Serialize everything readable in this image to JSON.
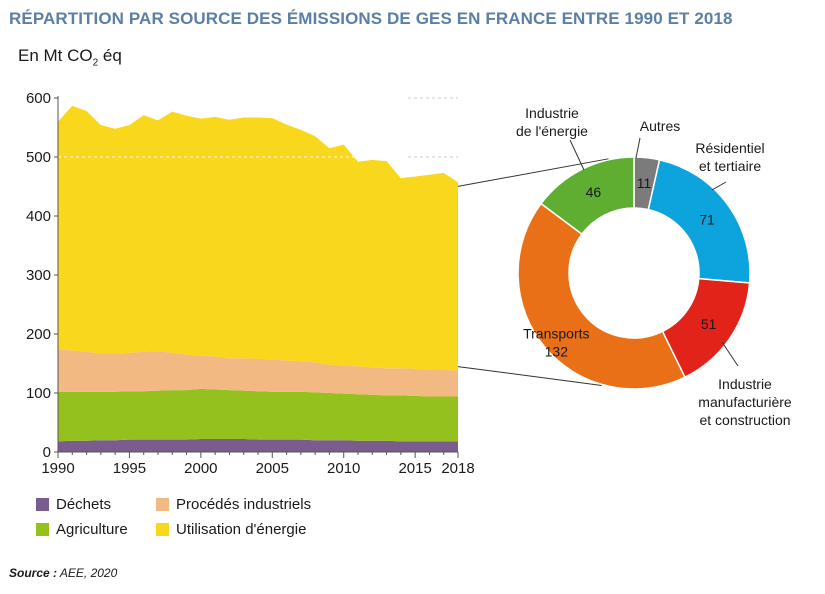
{
  "title": "RÉPARTITION PAR SOURCE DES ÉMISSIONS DE GES EN FRANCE ENTRE 1990 ET 2018",
  "unit": {
    "prefix": "En Mt CO",
    "sub": "2",
    "suffix": " éq"
  },
  "source": {
    "label": "Source :",
    "text": " AEE, 2020"
  },
  "legend": [
    {
      "label": "Déchets",
      "color": "#7a5c8f"
    },
    {
      "label": "Procédés industriels",
      "color": "#f2b983"
    },
    {
      "label": "Agriculture",
      "color": "#95c11f"
    },
    {
      "label": "Utilisation d'énergie",
      "color": "#f9d71c"
    }
  ],
  "chart_data": [
    {
      "type": "area",
      "stacked": true,
      "unit": "En Mt CO2 éq",
      "x": [
        1990,
        1991,
        1992,
        1993,
        1994,
        1995,
        1996,
        1997,
        1998,
        1999,
        2000,
        2001,
        2002,
        2003,
        2004,
        2005,
        2006,
        2007,
        2008,
        2009,
        2010,
        2011,
        2012,
        2013,
        2014,
        2015,
        2016,
        2017,
        2018
      ],
      "series": [
        {
          "name": "Déchets",
          "color": "#7a5c8f",
          "values": [
            18,
            19,
            19,
            20,
            20,
            21,
            21,
            21,
            21,
            21,
            22,
            22,
            22,
            22,
            21,
            21,
            21,
            21,
            20,
            20,
            20,
            19,
            19,
            19,
            18,
            18,
            18,
            18,
            18
          ]
        },
        {
          "name": "Agriculture",
          "color": "#95c11f",
          "values": [
            84,
            83,
            83,
            82,
            82,
            82,
            82,
            83,
            84,
            84,
            85,
            84,
            83,
            82,
            82,
            81,
            81,
            81,
            81,
            80,
            79,
            79,
            78,
            77,
            78,
            77,
            76,
            76,
            76
          ]
        },
        {
          "name": "Procédés industriels",
          "color": "#f2b983",
          "values": [
            72,
            70,
            68,
            65,
            65,
            65,
            67,
            67,
            63,
            60,
            56,
            56,
            54,
            55,
            55,
            55,
            53,
            52,
            51,
            48,
            48,
            47,
            46,
            46,
            46,
            46,
            45,
            45,
            44
          ]
        },
        {
          "name": "Utilisation d'énergie",
          "color": "#f9d71c",
          "values": [
            386,
            415,
            408,
            387,
            381,
            386,
            401,
            391,
            409,
            405,
            402,
            406,
            404,
            408,
            409,
            409,
            400,
            392,
            383,
            367,
            374,
            347,
            352,
            351,
            322,
            326,
            331,
            334,
            319
          ]
        }
      ],
      "x_ticks": [
        "1990",
        "1995",
        "2000",
        "2005",
        "2010",
        "2015",
        "2018"
      ],
      "y_ticks": [
        "0",
        "100",
        "200",
        "300",
        "400",
        "500",
        "600"
      ],
      "ylim": [
        0,
        600
      ],
      "gridlines": [
        500,
        600
      ],
      "legend_position": "bottom"
    },
    {
      "type": "pie",
      "donut": true,
      "series": [
        {
          "name": "Autres",
          "value": 11,
          "color": "#7b7b7b"
        },
        {
          "name": "Résidentiel\net tertiaire",
          "value": 71,
          "color": "#0da4dd"
        },
        {
          "name": "Industrie\nmanufacturière\net construction",
          "value": 51,
          "color": "#e2231a"
        },
        {
          "name": "Transports",
          "value": 132,
          "color": "#ea7018"
        },
        {
          "name": "Industrie\nde l'énergie",
          "value": 46,
          "color": "#5fae32"
        }
      ]
    }
  ]
}
